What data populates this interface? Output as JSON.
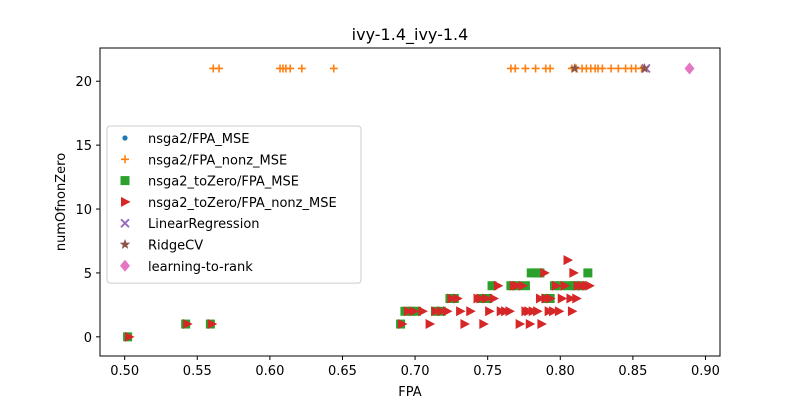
{
  "chart_data": {
    "type": "scatter",
    "title": "ivy-1.4_ivy-1.4",
    "xlabel": "FPA",
    "ylabel": "numOfnonZero",
    "xlim": [
      0.483,
      0.91
    ],
    "ylim": [
      -1.5,
      22.6
    ],
    "xticks": [
      0.5,
      0.55,
      0.6,
      0.65,
      0.7,
      0.75,
      0.8,
      0.85,
      0.9
    ],
    "xtick_labels": [
      "0.50",
      "0.55",
      "0.60",
      "0.65",
      "0.70",
      "0.75",
      "0.80",
      "0.85",
      "0.90"
    ],
    "yticks": [
      0,
      5,
      10,
      15,
      20
    ],
    "ytick_labels": [
      "0",
      "5",
      "10",
      "15",
      "20"
    ],
    "grid": false,
    "legend_position": "center-left",
    "series": [
      {
        "name": "nsga2/FPA_MSE",
        "marker": "circle",
        "color": "#1f77b4",
        "points": [
          [
            0.502,
            0
          ],
          [
            0.542,
            1
          ],
          [
            0.559,
            1
          ],
          [
            0.69,
            1
          ],
          [
            0.727,
            3
          ],
          [
            0.78,
            5
          ],
          [
            0.819,
            5
          ]
        ]
      },
      {
        "name": "nsga2/FPA_nonz_MSE",
        "marker": "plus",
        "color": "#ff7f0e",
        "points": [
          [
            0.561,
            21
          ],
          [
            0.565,
            21
          ],
          [
            0.607,
            21
          ],
          [
            0.609,
            21
          ],
          [
            0.611,
            21
          ],
          [
            0.614,
            21
          ],
          [
            0.622,
            21
          ],
          [
            0.644,
            21
          ],
          [
            0.766,
            21
          ],
          [
            0.769,
            21
          ],
          [
            0.776,
            21
          ],
          [
            0.783,
            21
          ],
          [
            0.79,
            21
          ],
          [
            0.793,
            21
          ],
          [
            0.808,
            21
          ],
          [
            0.811,
            21
          ],
          [
            0.815,
            21
          ],
          [
            0.818,
            21
          ],
          [
            0.821,
            21
          ],
          [
            0.824,
            21
          ],
          [
            0.826,
            21
          ],
          [
            0.829,
            21
          ],
          [
            0.835,
            21
          ],
          [
            0.84,
            21
          ],
          [
            0.845,
            21
          ],
          [
            0.849,
            21
          ],
          [
            0.852,
            21
          ],
          [
            0.856,
            21
          ]
        ]
      },
      {
        "name": "nsga2_toZero/FPA_MSE",
        "marker": "square",
        "color": "#2ca02c",
        "points": [
          [
            0.502,
            0
          ],
          [
            0.542,
            1
          ],
          [
            0.559,
            1
          ],
          [
            0.69,
            1
          ],
          [
            0.693,
            2
          ],
          [
            0.697,
            2
          ],
          [
            0.701,
            2
          ],
          [
            0.714,
            2
          ],
          [
            0.718,
            2
          ],
          [
            0.724,
            3
          ],
          [
            0.727,
            3
          ],
          [
            0.746,
            3
          ],
          [
            0.75,
            3
          ],
          [
            0.753,
            4
          ],
          [
            0.766,
            4
          ],
          [
            0.77,
            4
          ],
          [
            0.776,
            4
          ],
          [
            0.78,
            5
          ],
          [
            0.784,
            5
          ],
          [
            0.786,
            5
          ],
          [
            0.79,
            3
          ],
          [
            0.793,
            3
          ],
          [
            0.796,
            4
          ],
          [
            0.8,
            4
          ],
          [
            0.806,
            4
          ],
          [
            0.81,
            4
          ],
          [
            0.814,
            4
          ],
          [
            0.819,
            5
          ]
        ]
      },
      {
        "name": "nsga2_toZero/FPA_nonz_MSE",
        "marker": "triangle-right",
        "color": "#d62728",
        "points": [
          [
            0.503,
            0
          ],
          [
            0.543,
            1
          ],
          [
            0.56,
            1
          ],
          [
            0.691,
            1
          ],
          [
            0.695,
            2
          ],
          [
            0.699,
            2
          ],
          [
            0.705,
            2
          ],
          [
            0.71,
            1
          ],
          [
            0.714,
            2
          ],
          [
            0.718,
            2
          ],
          [
            0.722,
            2
          ],
          [
            0.725,
            3
          ],
          [
            0.729,
            3
          ],
          [
            0.731,
            2
          ],
          [
            0.734,
            1
          ],
          [
            0.738,
            2
          ],
          [
            0.743,
            3
          ],
          [
            0.745,
            3
          ],
          [
            0.747,
            1
          ],
          [
            0.749,
            3
          ],
          [
            0.751,
            2
          ],
          [
            0.754,
            3
          ],
          [
            0.757,
            4
          ],
          [
            0.759,
            2
          ],
          [
            0.762,
            2
          ],
          [
            0.765,
            2
          ],
          [
            0.768,
            4
          ],
          [
            0.77,
            4
          ],
          [
            0.772,
            1
          ],
          [
            0.774,
            4
          ],
          [
            0.776,
            2
          ],
          [
            0.778,
            2
          ],
          [
            0.779,
            1
          ],
          [
            0.781,
            2
          ],
          [
            0.784,
            2
          ],
          [
            0.786,
            3
          ],
          [
            0.787,
            1
          ],
          [
            0.789,
            5
          ],
          [
            0.79,
            3
          ],
          [
            0.792,
            2
          ],
          [
            0.793,
            3
          ],
          [
            0.795,
            2
          ],
          [
            0.797,
            4
          ],
          [
            0.799,
            2
          ],
          [
            0.801,
            3
          ],
          [
            0.803,
            4
          ],
          [
            0.805,
            6
          ],
          [
            0.807,
            3
          ],
          [
            0.808,
            2
          ],
          [
            0.809,
            5
          ],
          [
            0.811,
            3
          ],
          [
            0.812,
            4
          ],
          [
            0.815,
            4
          ],
          [
            0.818,
            4
          ],
          [
            0.82,
            4
          ]
        ]
      },
      {
        "name": "LinearRegression",
        "marker": "x",
        "color": "#9467bd",
        "points": [
          [
            0.859,
            21
          ]
        ]
      },
      {
        "name": "RidgeCV",
        "marker": "star",
        "color": "#8c564b",
        "points": [
          [
            0.81,
            21
          ],
          [
            0.858,
            21
          ]
        ]
      },
      {
        "name": "learning-to-rank",
        "marker": "diamond",
        "color": "#e377c2",
        "points": [
          [
            0.889,
            21
          ]
        ]
      }
    ]
  }
}
